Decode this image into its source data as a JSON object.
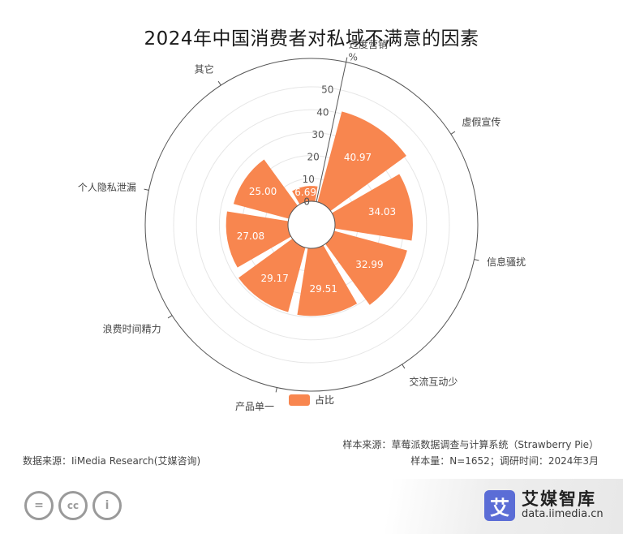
{
  "title": "2024年中国消费者对私域不满意的因素",
  "chart_data": {
    "type": "bar",
    "polar": true,
    "categories": [
      "过度营销",
      "虚假宣传",
      "信息骚扰",
      "交流互动少",
      "产品单一",
      "浪费时间精力",
      "个人隐私泄漏",
      "其它"
    ],
    "series": [
      {
        "name": "占比",
        "values": [
          40.97,
          34.03,
          32.99,
          29.51,
          29.17,
          27.08,
          25.0,
          6.69
        ]
      }
    ],
    "radial_ticks": [
      0,
      10,
      20,
      30,
      40,
      50
    ],
    "radial_unit": "%",
    "rlim": [
      0,
      50
    ],
    "legend_position": "bottom",
    "grid": true
  },
  "colors": {
    "bar": "#f8864f",
    "bar_label": "#ffffff",
    "grid": "#e6e6e6",
    "axis": "#555555"
  },
  "source": {
    "data_source": "数据来源：IiMedia Research(艾媒咨询)",
    "sample_source": "样本来源：草莓派数据调查与计算系统（Strawberry Pie）",
    "sample_info": "样本量：N=1652；调研时间：2024年3月"
  },
  "license_icons": [
    "equals-icon",
    "cc-icon",
    "person-icon"
  ],
  "license_glyphs": [
    "=",
    "cc",
    "i"
  ],
  "brand": {
    "logo_char": "艾",
    "name": "艾媒智库",
    "url": "data.iimedia.cn"
  }
}
